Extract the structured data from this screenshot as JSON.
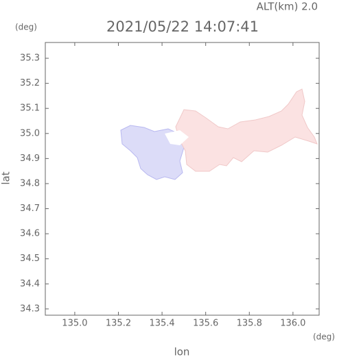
{
  "chart_data": {
    "type": "map",
    "title": "2021/05/22 14:07:41",
    "top_label": "ALT(km)  2.0",
    "y_unit": "(deg)",
    "x_unit": "(deg)",
    "xlabel": "lon",
    "ylabel": "lat",
    "xlim": [
      134.865,
      136.12
    ],
    "ylim": [
      34.275,
      35.363
    ],
    "xticks": [
      {
        "value": 135,
        "label": "135.0"
      },
      135.2,
      135.4,
      135.6,
      135.8,
      {
        "value": 136,
        "label": "136.0"
      }
    ],
    "yticks": [
      34.3,
      34.4,
      34.5,
      34.6,
      34.7,
      34.8,
      34.9,
      {
        "value": 35,
        "label": "35.0"
      },
      35.1,
      35.2,
      35.3
    ]
  }
}
